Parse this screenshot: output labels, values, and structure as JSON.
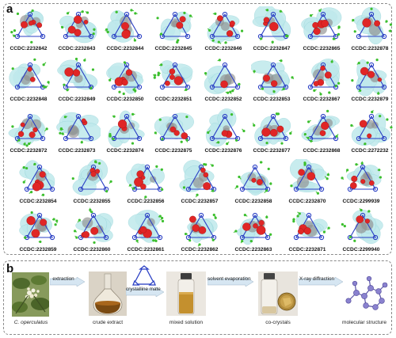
{
  "panel_a": {
    "label": "a",
    "rows": [
      [
        "CCDC:2232842",
        "CCDC:2232843",
        "CCDC:2232844",
        "CCDC:2232845",
        "CCDC:2232846",
        "CCDC:2232847",
        "CCDC:2232865",
        "CCDC:2232878"
      ],
      [
        "CCDC:2232848",
        "CCDC:2232849",
        "CCDC:2232850",
        "CCDC:2232851",
        "CCDC:2232852",
        "CCDC:2232853",
        "CCDC:2232867",
        "CCDC:2232879"
      ],
      [
        "CCDC:2232872",
        "CCDC:2232873",
        "CCDC:2232874",
        "CCDC:2232875",
        "CCDC:2232876",
        "CCDC:2232877",
        "CCDC:2232868",
        "CCDC:2272232"
      ],
      [
        "CCDC:2232854",
        "CCDC:2232855",
        "CCDC:2232856",
        "CCDC:2232857",
        "CCDC:2232858",
        "CCDC:2232870",
        "CCDC:2299939"
      ],
      [
        "CCDC:2232859",
        "CCDC:2232860",
        "CCDC:2232861",
        "CCDC:2232862",
        "CCDC:2232863",
        "CCDC:2232871",
        "CCDC:2299940"
      ]
    ]
  },
  "panel_b": {
    "label": "b",
    "steps": [
      {
        "caption": "C. operculatus"
      },
      {
        "caption": "crude extract"
      },
      {
        "caption": ""
      },
      {
        "caption": "mixed solution"
      },
      {
        "caption": "co-crystals"
      },
      {
        "caption": "molecular structure"
      }
    ],
    "arrows": [
      "extraction",
      "crystalline mate",
      "solvent evaporation",
      "X-ray diffraction"
    ]
  },
  "colors": {
    "surface": "#bfe9ec",
    "oxygen": "#e02626",
    "nitrogen": "#2a3fc4",
    "chlorine": "#3cbf2e",
    "carbon": "#8f8f8f",
    "arrow": "#d6e6f2"
  }
}
